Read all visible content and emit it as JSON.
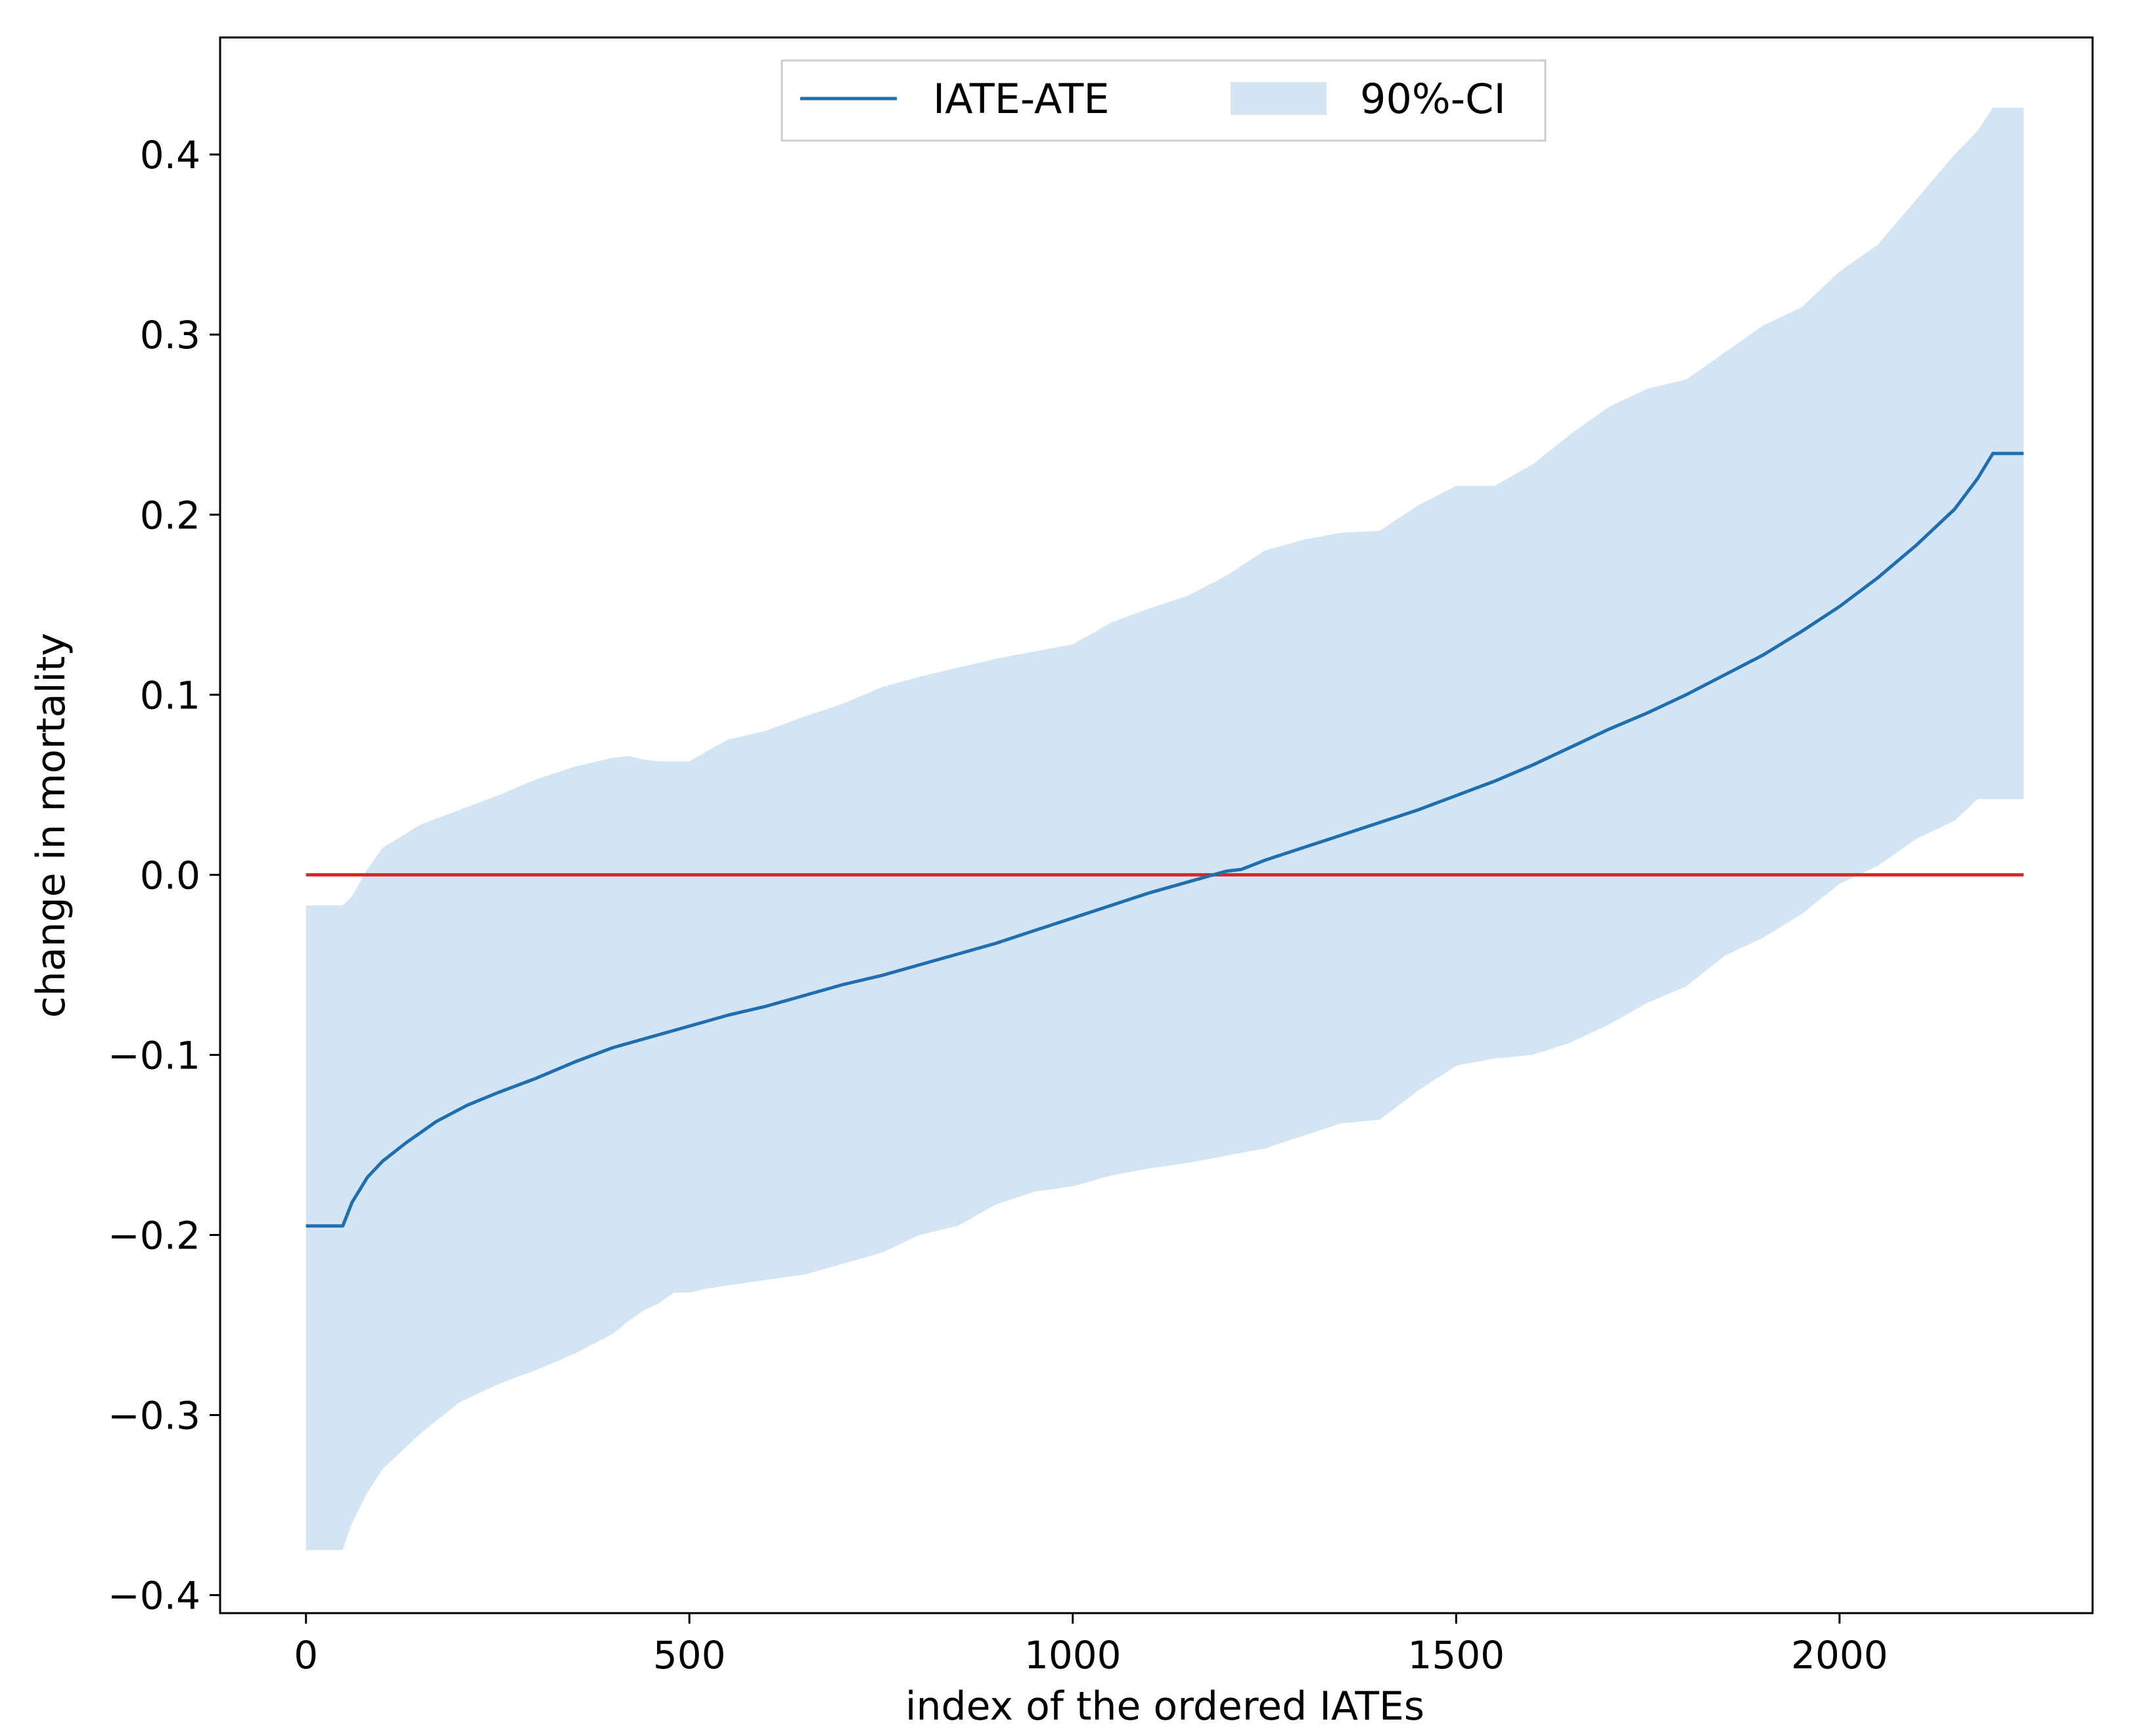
{
  "chart_data": {
    "type": "line",
    "title": "",
    "xlabel": "index of the ordered IATEs",
    "ylabel": "change in mortality",
    "xlim": [
      -112,
      2330
    ],
    "ylim": [
      -0.41,
      0.465
    ],
    "xticks": [
      0,
      500,
      1000,
      1500,
      2000
    ],
    "xtick_labels": [
      "0",
      "500",
      "1000",
      "1500",
      "2000"
    ],
    "yticks": [
      -0.4,
      -0.3,
      -0.2,
      -0.1,
      0.0,
      0.1,
      0.2,
      0.3,
      0.4
    ],
    "ytick_labels": [
      "−0.4",
      "−0.3",
      "−0.2",
      "−0.1",
      "0.0",
      "0.1",
      "0.2",
      "0.3",
      "0.4"
    ],
    "grid": false,
    "legend": {
      "placement": "top-center",
      "entries": [
        "IATE-ATE",
        "90%-CI"
      ]
    },
    "colors": {
      "line": "#1f6fb0",
      "band": "#d3e4f2",
      "zero_line": "#d62728",
      "axes": "#000000"
    },
    "reference_line": {
      "name": "zero",
      "y": 0.0,
      "x_range": [
        0,
        2240
      ]
    },
    "series": [
      {
        "name": "IATE-ATE",
        "kind": "line",
        "x": [
          0,
          48,
          60,
          80,
          100,
          130,
          170,
          210,
          250,
          300,
          350,
          400,
          450,
          500,
          550,
          600,
          650,
          700,
          750,
          800,
          850,
          900,
          950,
          1000,
          1050,
          1100,
          1150,
          1200,
          1220,
          1250,
          1300,
          1350,
          1400,
          1450,
          1500,
          1550,
          1600,
          1650,
          1700,
          1750,
          1800,
          1850,
          1900,
          1950,
          2000,
          2050,
          2100,
          2150,
          2180,
          2200,
          2220,
          2240
        ],
        "values": [
          -0.195,
          -0.195,
          -0.182,
          -0.168,
          -0.159,
          -0.149,
          -0.137,
          -0.128,
          -0.121,
          -0.113,
          -0.104,
          -0.096,
          -0.09,
          -0.084,
          -0.078,
          -0.073,
          -0.067,
          -0.061,
          -0.056,
          -0.05,
          -0.044,
          -0.038,
          -0.031,
          -0.024,
          -0.017,
          -0.01,
          -0.004,
          0.002,
          0.003,
          0.008,
          0.015,
          0.022,
          0.029,
          0.036,
          0.044,
          0.052,
          0.061,
          0.071,
          0.081,
          0.09,
          0.1,
          0.111,
          0.122,
          0.135,
          0.149,
          0.165,
          0.183,
          0.203,
          0.22,
          0.234,
          0.234,
          0.234
        ]
      },
      {
        "name": "90%-CI",
        "kind": "band",
        "x": [
          0,
          48,
          60,
          80,
          100,
          150,
          200,
          250,
          300,
          350,
          400,
          420,
          440,
          460,
          480,
          500,
          520,
          550,
          600,
          650,
          700,
          750,
          800,
          850,
          900,
          950,
          1000,
          1050,
          1100,
          1150,
          1200,
          1250,
          1300,
          1350,
          1400,
          1450,
          1500,
          1550,
          1600,
          1650,
          1700,
          1750,
          1800,
          1850,
          1900,
          1950,
          2000,
          2050,
          2100,
          2150,
          2180,
          2200,
          2220,
          2240
        ],
        "upper": [
          -0.017,
          -0.017,
          -0.012,
          0.003,
          0.015,
          0.028,
          0.036,
          0.044,
          0.053,
          0.06,
          0.065,
          0.066,
          0.064,
          0.063,
          0.063,
          0.063,
          0.068,
          0.075,
          0.08,
          0.088,
          0.095,
          0.104,
          0.11,
          0.115,
          0.12,
          0.124,
          0.128,
          0.14,
          0.148,
          0.155,
          0.166,
          0.18,
          0.186,
          0.19,
          0.191,
          0.205,
          0.216,
          0.216,
          0.228,
          0.245,
          0.26,
          0.27,
          0.275,
          0.29,
          0.305,
          0.315,
          0.335,
          0.35,
          0.375,
          0.4,
          0.413,
          0.426,
          0.426,
          0.426
        ],
        "lower": [
          -0.375,
          -0.375,
          -0.36,
          -0.343,
          -0.33,
          -0.31,
          -0.293,
          -0.283,
          -0.275,
          -0.266,
          -0.255,
          -0.248,
          -0.242,
          -0.238,
          -0.232,
          -0.232,
          -0.23,
          -0.228,
          -0.225,
          -0.222,
          -0.216,
          -0.21,
          -0.2,
          -0.195,
          -0.183,
          -0.176,
          -0.173,
          -0.167,
          -0.163,
          -0.16,
          -0.156,
          -0.152,
          -0.145,
          -0.138,
          -0.136,
          -0.12,
          -0.106,
          -0.102,
          -0.1,
          -0.093,
          -0.083,
          -0.071,
          -0.062,
          -0.045,
          -0.035,
          -0.022,
          -0.005,
          0.005,
          0.02,
          0.03,
          0.042,
          0.042,
          0.042,
          0.042
        ]
      }
    ]
  }
}
